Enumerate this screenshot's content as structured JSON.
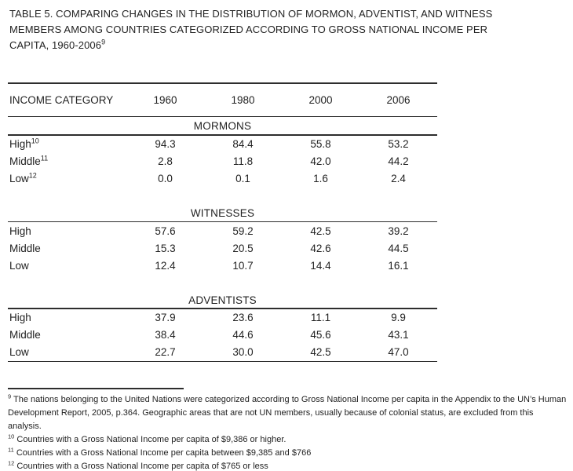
{
  "title": {
    "lines": [
      "TABLE 5. COMPARING CHANGES IN THE DISTRIBUTION OF MORMON, ADVENTIST, AND WITNESS",
      "MEMBERS AMONG COUNTRIES CATEGORIZED ACCORDING TO GROSS NATIONAL INCOME PER",
      "CAPITA, 1960-2006"
    ],
    "sup": "9"
  },
  "table": {
    "header": {
      "cols": [
        "INCOME CATEGORY",
        "1960",
        "1980",
        "2000",
        "2006"
      ]
    },
    "sections": [
      {
        "name": "MORMONS",
        "rows": [
          {
            "label": "High",
            "sup": "10",
            "v1": "94.3",
            "v2": "84.4",
            "v3": "55.8",
            "v4": "53.2"
          },
          {
            "label": "Middle",
            "sup": "11",
            "v1": "2.8",
            "v2": "11.8",
            "v3": "42.0",
            "v4": "44.2"
          },
          {
            "label": "Low",
            "sup": "12",
            "v1": "0.0",
            "v2": "0.1",
            "v3": "1.6",
            "v4": "2.4"
          }
        ]
      },
      {
        "name": "WITNESSES",
        "rows": [
          {
            "label": "High",
            "v1": "57.6",
            "v2": "59.2",
            "v3": "42.5",
            "v4": "39.2"
          },
          {
            "label": "Middle",
            "v1": "15.3",
            "v2": "20.5",
            "v3": "42.6",
            "v4": "44.5"
          },
          {
            "label": "Low",
            "v1": "12.4",
            "v2": "10.7",
            "v3": "14.4",
            "v4": "16.1"
          }
        ]
      },
      {
        "name": "ADVENTISTS",
        "rows": [
          {
            "label": "High",
            "v1": "37.9",
            "v2": "23.6",
            "v3": "11.1",
            "v4": "9.9"
          },
          {
            "label": "Middle",
            "v1": "38.4",
            "v2": "44.6",
            "v3": "45.6",
            "v4": "43.1"
          },
          {
            "label": "Low",
            "v1": "22.7",
            "v2": "30.0",
            "v3": "42.5",
            "v4": "47.0"
          }
        ]
      }
    ]
  },
  "footnotes": [
    {
      "sup": "9",
      "text": "The nations belonging to the United Nations were categorized according to Gross National Income per capita in the Appendix to the UN’s Human Development Report, 2005, p.364. Geographic areas that are not UN members, usually because of colonial status, are excluded from this analysis."
    },
    {
      "sup": "10",
      "text": "Countries with a Gross National Income per capita of $9,386 or higher."
    },
    {
      "sup": "11",
      "text": "Countries with a Gross National Income per capita between $9,385 and $766"
    },
    {
      "sup": "12",
      "text": "Countries with a Gross National Income per capita of $765 or less"
    }
  ]
}
